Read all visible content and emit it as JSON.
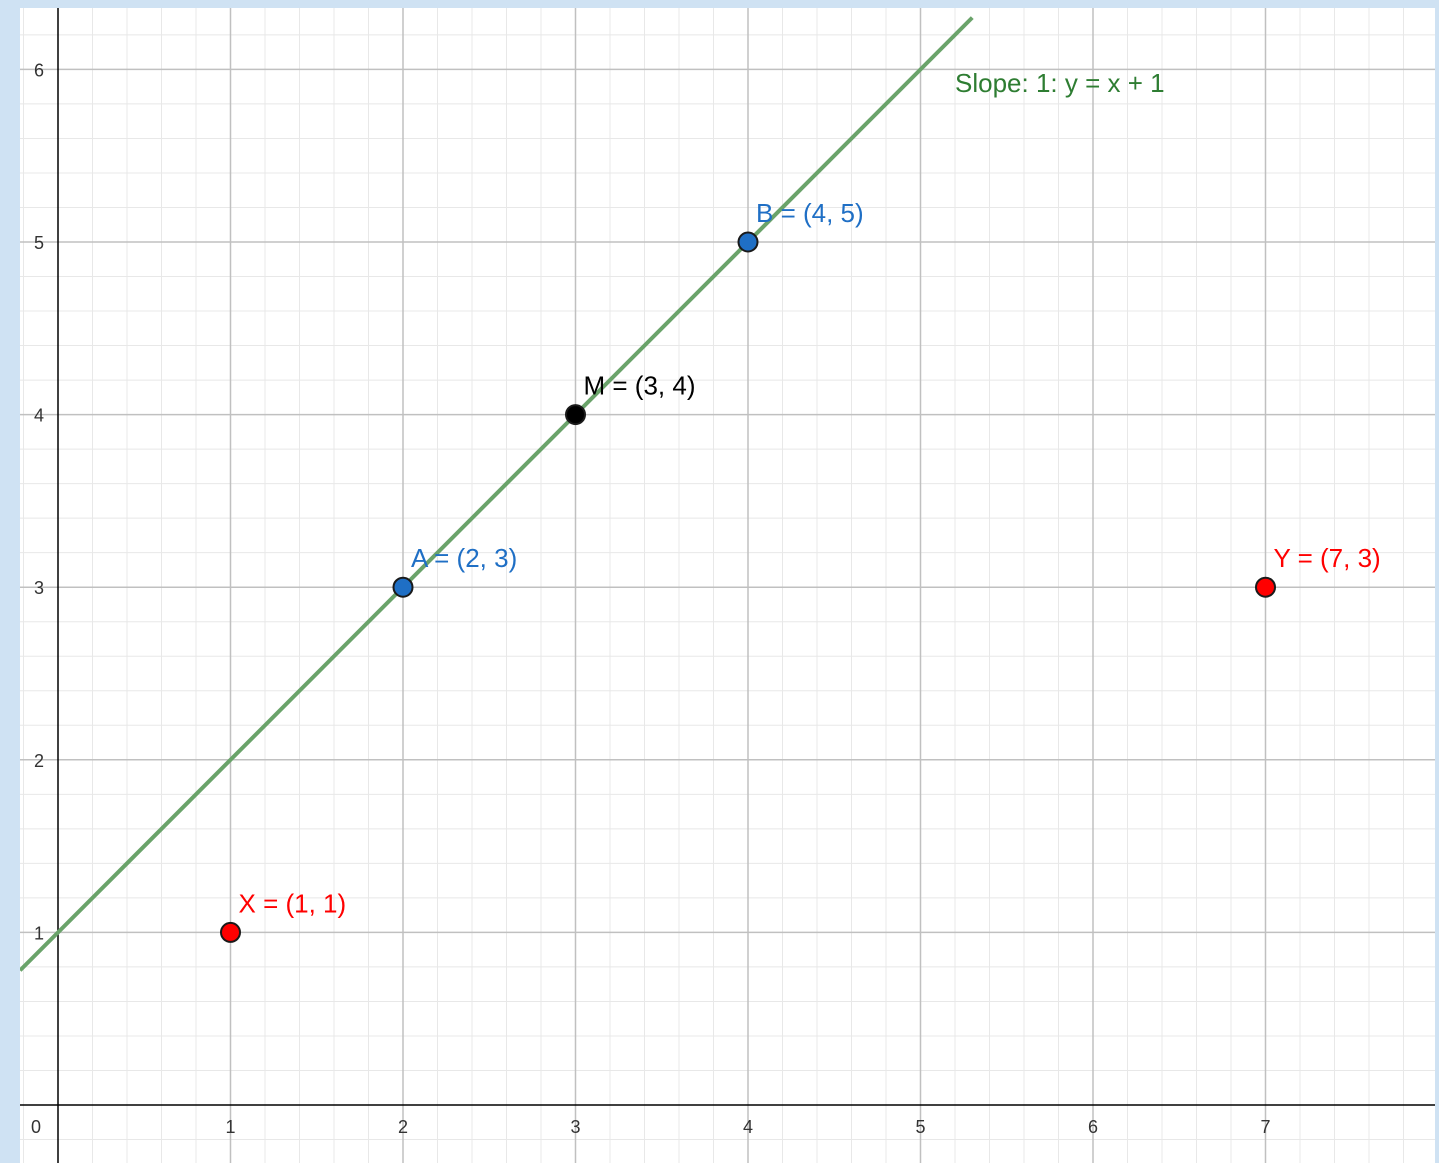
{
  "chart_data": {
    "type": "scatter",
    "title": "",
    "xlabel": "",
    "ylabel": "",
    "xlim": [
      -0.22,
      8.0
    ],
    "ylim": [
      -0.32,
      6.3
    ],
    "grid": true,
    "x_ticks": [
      {
        "value": 0,
        "label": "0"
      },
      {
        "value": 1,
        "label": "1"
      },
      {
        "value": 2,
        "label": "2"
      },
      {
        "value": 3,
        "label": "3"
      },
      {
        "value": 4,
        "label": "4"
      },
      {
        "value": 5,
        "label": "5"
      },
      {
        "value": 6,
        "label": "6"
      },
      {
        "value": 7,
        "label": "7"
      }
    ],
    "y_ticks": [
      {
        "value": 1,
        "label": "1"
      },
      {
        "value": 2,
        "label": "2"
      },
      {
        "value": 3,
        "label": "3"
      },
      {
        "value": 4,
        "label": "4"
      },
      {
        "value": 5,
        "label": "5"
      },
      {
        "value": 6,
        "label": "6"
      }
    ],
    "line": {
      "label": "Slope: 1: y = x + 1",
      "slope": 1,
      "intercept": 1,
      "color": "#6aa36a",
      "label_color": "#2e7d32"
    },
    "points": [
      {
        "name": "A",
        "label": "A = (2, 3)",
        "x": 2,
        "y": 3,
        "fill": "#1f6fc5",
        "label_color": "#1f6fc5"
      },
      {
        "name": "B",
        "label": "B = (4, 5)",
        "x": 4,
        "y": 5,
        "fill": "#1f6fc5",
        "label_color": "#1f6fc5"
      },
      {
        "name": "M",
        "label": "M = (3, 4)",
        "x": 3,
        "y": 4,
        "fill": "#000000",
        "label_color": "#000000"
      },
      {
        "name": "X",
        "label": "X = (1, 1)",
        "x": 1,
        "y": 1,
        "fill": "#ff0000",
        "label_color": "#ff0000"
      },
      {
        "name": "Y",
        "label": "Y = (7, 3)",
        "x": 7,
        "y": 3,
        "fill": "#ff0000",
        "label_color": "#ff0000"
      }
    ]
  }
}
